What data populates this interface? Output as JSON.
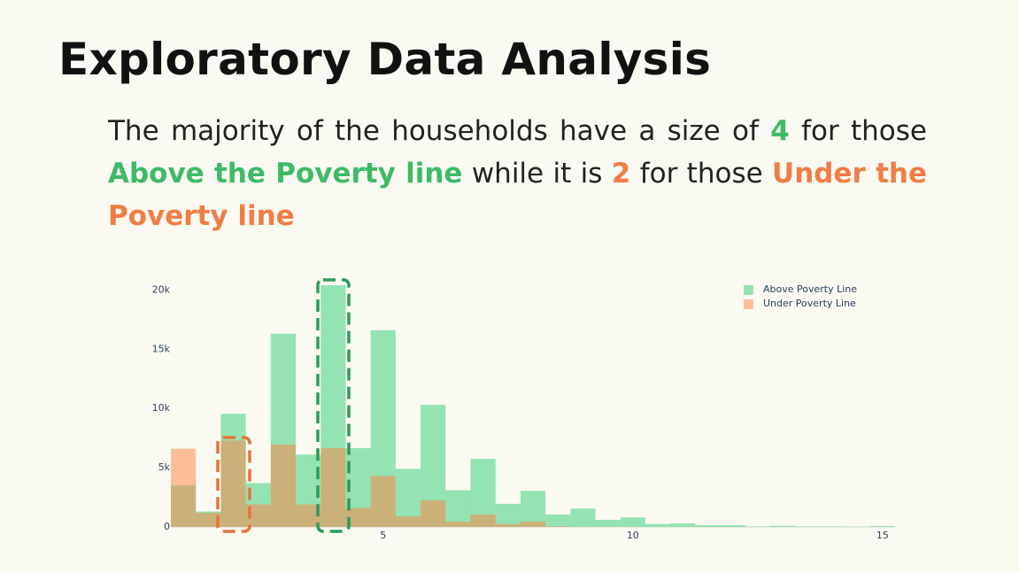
{
  "slide": {
    "title": "Exploratory Data Analysis",
    "body": [
      "The majority of the households have a size of ",
      "4",
      " for those ",
      "Above the Poverty line",
      " while it is ",
      "2",
      " for those ",
      "Under the Poverty line"
    ]
  },
  "chart_data": {
    "type": "histogram",
    "bins": [
      0.75,
      1.25,
      1.75,
      2.25,
      2.75,
      3.25,
      3.75,
      4.25,
      4.75,
      5.25,
      5.75,
      6.25,
      6.75,
      7.25,
      7.75,
      8.25,
      8.75,
      9.25,
      9.75,
      10.25,
      10.75,
      11.25,
      11.75,
      12.25,
      12.75,
      13.25,
      13.75,
      14.25,
      14.75,
      15.25
    ],
    "series": [
      {
        "name": "Above Poverty Line",
        "color": "#2ecc71",
        "values": [
          3500,
          1300,
          9550,
          3700,
          16300,
          6100,
          20400,
          6650,
          16600,
          4900,
          10300,
          3100,
          5750,
          1950,
          3050,
          1050,
          1550,
          600,
          800,
          250,
          300,
          150,
          150,
          50,
          100,
          50,
          50,
          30,
          80
        ]
      },
      {
        "name": "Under Poverty Line",
        "color": "#ff7f3f",
        "values": [
          6600,
          1200,
          7300,
          1900,
          6950,
          1900,
          6650,
          1600,
          4300,
          900,
          2250,
          450,
          1050,
          250,
          450,
          50,
          0,
          0,
          0,
          0,
          0,
          0,
          0,
          0,
          0,
          0,
          0,
          0,
          0
        ]
      }
    ],
    "xlim": [
      0.75,
      15.25
    ],
    "ylim": [
      0,
      21000
    ],
    "xticks": [
      5,
      10,
      15
    ],
    "yticks": [
      0,
      {
        "value": 5000,
        "label": "5k"
      },
      {
        "value": 10000,
        "label": "10k"
      },
      {
        "value": 15000,
        "label": "15k"
      },
      {
        "value": 20000,
        "label": "20k"
      }
    ],
    "legend": "top-right",
    "opacity": 0.5
  }
}
